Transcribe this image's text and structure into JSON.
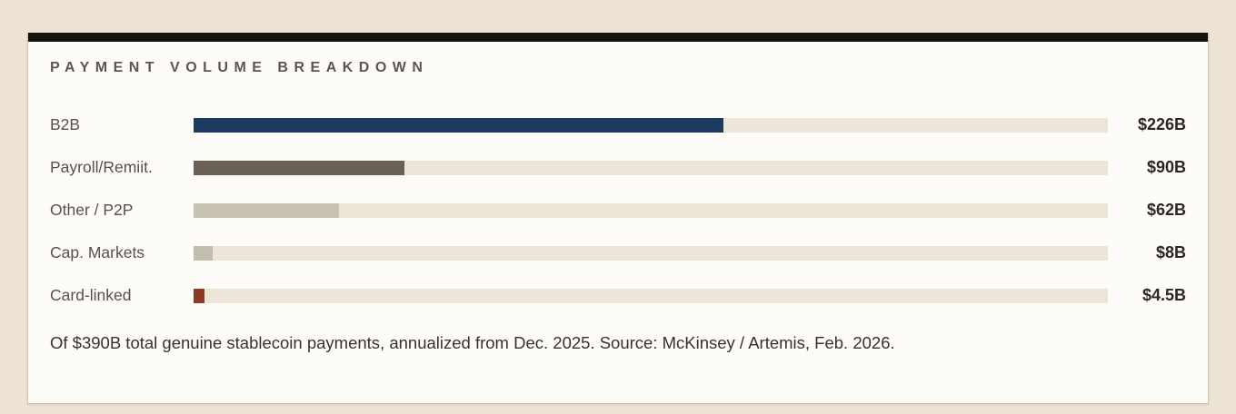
{
  "palette": {
    "page_background": "#ece3d5",
    "card_background": "#fdfcf8",
    "top_bar": "#16120d",
    "card_border": "#c9c3b8",
    "title_text": "#5b564f",
    "label_text": "#56514a",
    "value_text": "#2b2722",
    "footer_text": "#37322c"
  },
  "chart_data": {
    "type": "bar",
    "orientation": "horizontal",
    "title": "PAYMENT VOLUME BREAKDOWN",
    "categories": [
      "B2B",
      "Payroll/Remiit.",
      "Other / P2P",
      "Cap. Markets",
      "Card-linked"
    ],
    "values": [
      226,
      90,
      62,
      8,
      4.5
    ],
    "value_labels": [
      "$226B",
      "$90B",
      "$62B",
      "$8B",
      "$4.5B"
    ],
    "bar_colors": [
      "#1d3b60",
      "#6a6156",
      "#c8c2b3",
      "#c3bdaf",
      "#8c3a21"
    ],
    "track_color": "#ece6d9",
    "xlim": [
      0,
      390
    ],
    "grid": false,
    "legend": false,
    "note": "Of $390B total genuine stablecoin payments, annualized from Dec. 2025. Source: McKinsey / Artemis, Feb. 2026."
  }
}
